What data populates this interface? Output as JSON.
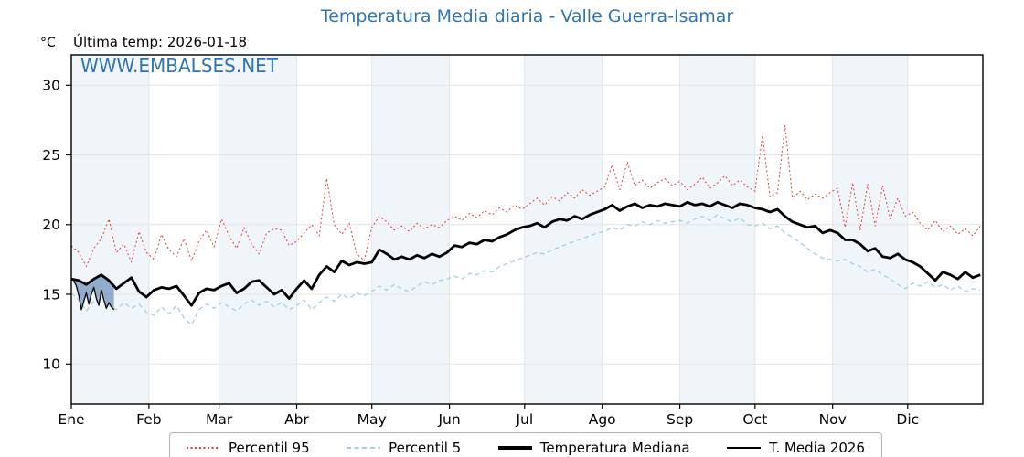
{
  "header": {
    "title": "Temperatura Media diaria - Valle Guerra-Isamar",
    "y_unit": "°C",
    "last_temp": "Última temp: 2026-01-18",
    "watermark": "WWW.EMBALSES.NET"
  },
  "colors": {
    "accent_blue": "#2e74b5",
    "p95_red": "#e33b3b",
    "p5_lightblue": "#a4cfe3",
    "line_black": "#000000",
    "fill_steelblue": "rgba(70,112,165,0.55)",
    "month_band": "#f0f5fa",
    "h_gridline": "#e4e4e6",
    "v_gridline": "#dde5ed",
    "legend_border": "#b3b3b3"
  },
  "chart_data": {
    "type": "line",
    "title": "Temperatura Media diaria - Valle Guerra-Isamar",
    "xlabel": "",
    "ylabel": "°C",
    "x_axis": {
      "tick_labels": [
        "Ene",
        "Feb",
        "Mar",
        "Abr",
        "May",
        "Jun",
        "Jul",
        "Ago",
        "Sep",
        "Oct",
        "Nov",
        "Dic"
      ],
      "month_start_days": [
        0,
        31,
        59,
        90,
        120,
        151,
        181,
        212,
        243,
        273,
        304,
        334
      ],
      "days_in_year": 365
    },
    "y_axis": {
      "unit": "°C",
      "ticks": [
        10,
        15,
        20,
        25,
        30
      ],
      "range": [
        7.1,
        32.2
      ]
    },
    "grid": true,
    "shaded_months": [
      0,
      2,
      4,
      6,
      8,
      10
    ],
    "legend_position": "bottom",
    "series": [
      {
        "name": "Percentil 95",
        "color": "#e33b3b",
        "style": "dotted",
        "width": 1,
        "day_start": 1,
        "day_step": 3,
        "values": [
          18.5,
          18.0,
          17.0,
          18.3,
          19.0,
          20.4,
          18.0,
          18.6,
          17.3,
          19.5,
          18.0,
          17.5,
          19.3,
          18.2,
          17.7,
          19.0,
          17.4,
          18.8,
          19.6,
          18.4,
          20.4,
          19.2,
          18.3,
          19.8,
          18.6,
          17.9,
          19.4,
          19.7,
          19.6,
          18.5,
          18.8,
          19.4,
          20.0,
          19.2,
          23.3,
          20.0,
          19.3,
          20.1,
          17.9,
          17.4,
          19.8,
          20.6,
          20.2,
          19.6,
          19.9,
          19.5,
          20.1,
          19.7,
          20.0,
          19.8,
          20.3,
          20.6,
          20.3,
          20.8,
          20.5,
          21.0,
          20.7,
          21.2,
          20.9,
          21.4,
          21.1,
          21.5,
          21.9,
          21.4,
          22.0,
          21.7,
          22.3,
          21.9,
          22.5,
          22.1,
          22.4,
          22.7,
          24.3,
          22.5,
          24.5,
          22.8,
          23.2,
          22.6,
          23.0,
          23.3,
          22.8,
          23.1,
          22.5,
          22.9,
          23.4,
          22.6,
          23.0,
          23.5,
          22.8,
          23.2,
          22.7,
          22.4,
          26.4,
          22.0,
          22.3,
          27.1,
          21.9,
          22.4,
          21.8,
          22.2,
          21.9,
          22.3,
          22.6,
          19.8,
          23.0,
          19.6,
          22.9,
          19.9,
          22.8,
          20.4,
          21.9,
          20.6,
          20.9,
          20.1,
          19.6,
          20.3,
          19.5,
          19.9,
          19.3,
          19.7,
          19.2,
          19.9
        ]
      },
      {
        "name": "Percentil 5",
        "color": "#a4cfe3",
        "style": "dashed",
        "width": 1.3,
        "day_start": 1,
        "day_step": 3,
        "values": [
          15.1,
          14.6,
          13.8,
          14.5,
          14.9,
          14.2,
          13.9,
          14.4,
          14.0,
          14.3,
          13.7,
          13.5,
          14.1,
          13.6,
          14.2,
          13.3,
          12.8,
          13.9,
          14.3,
          14.0,
          14.4,
          14.1,
          13.8,
          14.3,
          14.6,
          14.2,
          14.5,
          14.1,
          14.4,
          13.9,
          14.2,
          14.6,
          13.9,
          14.4,
          14.8,
          14.5,
          15.0,
          14.7,
          15.1,
          14.9,
          15.2,
          15.6,
          15.3,
          15.7,
          15.4,
          15.2,
          15.6,
          15.9,
          15.7,
          16.0,
          16.1,
          16.3,
          16.1,
          16.5,
          16.4,
          16.7,
          16.6,
          17.0,
          17.2,
          17.4,
          17.6,
          17.8,
          18.0,
          17.9,
          18.2,
          18.4,
          18.6,
          18.8,
          19.0,
          19.2,
          19.4,
          19.5,
          19.8,
          19.6,
          20.0,
          19.9,
          20.2,
          20.0,
          20.3,
          20.1,
          20.2,
          20.3,
          20.1,
          20.4,
          20.6,
          20.3,
          20.7,
          20.4,
          20.2,
          20.5,
          20.0,
          19.9,
          20.1,
          19.7,
          19.9,
          19.4,
          19.1,
          18.7,
          18.3,
          17.9,
          17.6,
          17.5,
          17.4,
          17.5,
          17.2,
          17.0,
          16.6,
          16.8,
          16.4,
          16.1,
          15.7,
          15.4,
          15.8,
          15.6,
          15.9,
          15.5,
          15.7,
          15.3,
          15.6,
          15.2,
          15.4,
          15.3
        ]
      },
      {
        "name": "Temperatura Mediana",
        "color": "#000000",
        "style": "solid",
        "width": 2.8,
        "day_start": 1,
        "day_step": 3,
        "values": [
          16.1,
          16.0,
          15.7,
          16.1,
          16.4,
          16.0,
          15.4,
          15.8,
          16.2,
          15.2,
          14.8,
          15.3,
          15.5,
          15.4,
          15.6,
          14.9,
          14.2,
          15.1,
          15.4,
          15.3,
          15.6,
          15.8,
          15.1,
          15.4,
          15.9,
          16.0,
          15.5,
          15.0,
          15.3,
          14.7,
          15.4,
          16.0,
          15.4,
          16.4,
          17.0,
          16.6,
          17.4,
          17.1,
          17.3,
          17.2,
          17.3,
          18.2,
          17.9,
          17.5,
          17.7,
          17.5,
          17.8,
          17.6,
          17.9,
          17.7,
          18.0,
          18.5,
          18.4,
          18.7,
          18.6,
          18.9,
          18.8,
          19.1,
          19.3,
          19.6,
          19.8,
          19.9,
          20.1,
          19.8,
          20.2,
          20.4,
          20.3,
          20.6,
          20.4,
          20.7,
          20.9,
          21.1,
          21.4,
          21.0,
          21.3,
          21.5,
          21.2,
          21.4,
          21.3,
          21.5,
          21.4,
          21.3,
          21.6,
          21.4,
          21.5,
          21.3,
          21.6,
          21.4,
          21.2,
          21.5,
          21.4,
          21.2,
          21.1,
          20.9,
          21.1,
          20.6,
          20.2,
          20.0,
          19.8,
          19.9,
          19.4,
          19.6,
          19.4,
          18.9,
          18.9,
          18.6,
          18.1,
          18.3,
          17.7,
          17.6,
          17.9,
          17.5,
          17.3,
          17.0,
          16.5,
          16.0,
          16.6,
          16.4,
          16.1,
          16.6,
          16.2,
          16.4
        ]
      },
      {
        "name": "T. Media 2026",
        "color": "#000000",
        "style": "solid",
        "width": 1.3,
        "day_start": 1,
        "day_step": 1,
        "fill_between": "Temperatura Mediana",
        "fill_color": "rgba(70,112,165,0.55)",
        "values": [
          16.1,
          16.0,
          15.6,
          14.9,
          13.9,
          14.5,
          15.1,
          14.3,
          15.0,
          15.5,
          14.7,
          14.2,
          15.3,
          14.6,
          14.0,
          14.4,
          14.1,
          13.9
        ]
      }
    ]
  }
}
